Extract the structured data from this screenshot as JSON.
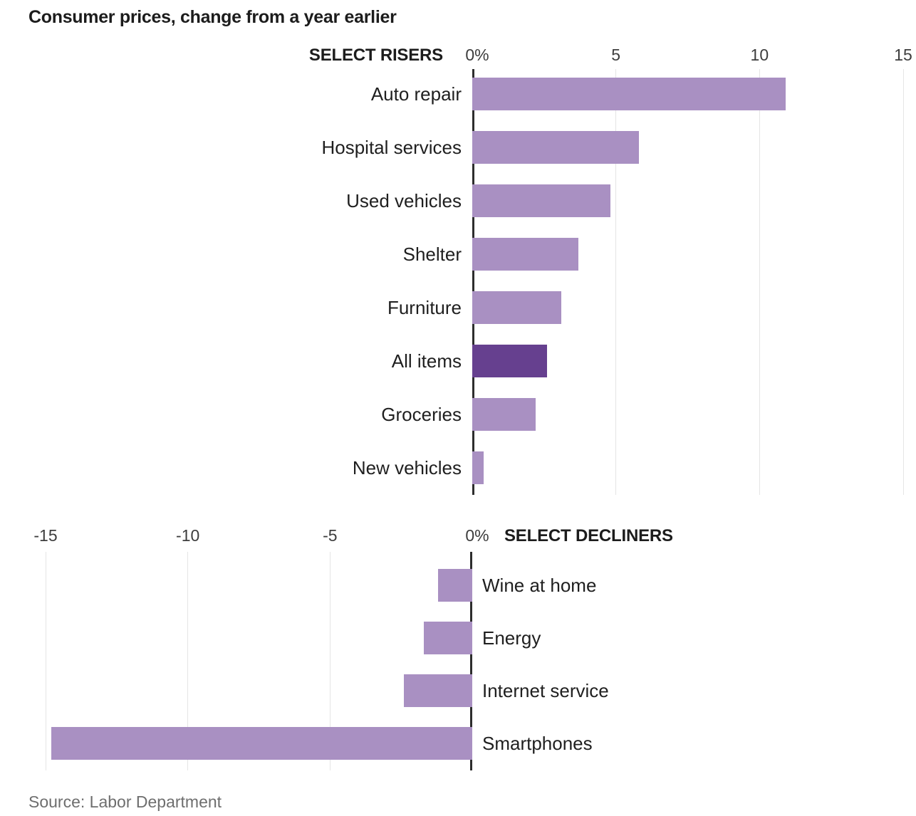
{
  "title": "Consumer prices, change from a year earlier",
  "source": "Source: Labor Department",
  "colors": {
    "bar": "#a990c2",
    "bar_highlight": "#66408f",
    "axis": "#2d2d2d",
    "gridline": "#e5e5e5"
  },
  "chart_data": [
    {
      "type": "bar",
      "orientation": "horizontal",
      "panel": "SELECT RISERS",
      "categories": [
        "Auto repair",
        "Hospital services",
        "Used vehicles",
        "Shelter",
        "Furniture",
        "All items",
        "Groceries",
        "New vehicles"
      ],
      "values": [
        10.9,
        5.8,
        4.8,
        3.7,
        3.1,
        2.6,
        2.2,
        0.4
      ],
      "highlight_category": "All items",
      "xlim": [
        0,
        15
      ],
      "ticks": [
        {
          "label": "0%",
          "value": 0
        },
        {
          "label": "5",
          "value": 5
        },
        {
          "label": "10",
          "value": 10
        },
        {
          "label": "15",
          "value": 15
        }
      ],
      "grid": true,
      "unit": "percent"
    },
    {
      "type": "bar",
      "orientation": "horizontal",
      "panel": "SELECT DECLINERS",
      "categories": [
        "Wine at home",
        "Energy",
        "Internet service",
        "Smartphones"
      ],
      "values": [
        -1.2,
        -1.7,
        -2.4,
        -14.8
      ],
      "highlight_category": null,
      "xlim": [
        -15,
        0
      ],
      "ticks": [
        {
          "label": "-15",
          "value": -15
        },
        {
          "label": "-10",
          "value": -10
        },
        {
          "label": "-5",
          "value": -5
        },
        {
          "label": "0%",
          "value": 0
        }
      ],
      "grid": true,
      "unit": "percent"
    }
  ]
}
